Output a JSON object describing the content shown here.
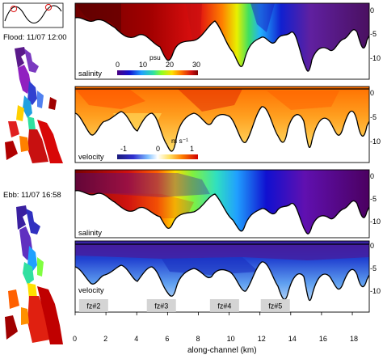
{
  "tide": {
    "flood_label": "Flood: 11/07 12:00",
    "ebb_label": "Ebb: 11/07 16:58"
  },
  "panels": [
    {
      "id": "flood-salinity",
      "label": "salinity",
      "colorbar": {
        "unit": "psu",
        "ticks": [
          "0",
          "10",
          "20",
          "30"
        ]
      }
    },
    {
      "id": "flood-velocity",
      "label": "velocity",
      "colorbar": {
        "unit": "m s⁻¹",
        "ticks": [
          "-1",
          "0",
          "1"
        ]
      }
    },
    {
      "id": "ebb-salinity",
      "label": "salinity"
    },
    {
      "id": "ebb-velocity",
      "label": "velocity"
    }
  ],
  "depth_ticks": [
    "0",
    "-5",
    "-10"
  ],
  "x_ticks": [
    "0",
    "2",
    "4",
    "6",
    "8",
    "10",
    "12",
    "14",
    "16",
    "18"
  ],
  "x_label": "along-channel (km)",
  "frontal_zones": [
    {
      "label": "fz#2",
      "km": 1.2
    },
    {
      "label": "fz#3",
      "km": 5.6
    },
    {
      "label": "fz#4",
      "km": 9.7
    },
    {
      "label": "fz#5",
      "km": 13.0
    }
  ],
  "colors": {
    "salinity_scale": [
      "#4b0082",
      "#1010d0",
      "#20a0ff",
      "#30e0a0",
      "#90ff20",
      "#ffe000",
      "#ff7000",
      "#d01010",
      "#7a0000"
    ],
    "velocity_scale": [
      "#1a1a7a",
      "#3030d0",
      "#80c0ff",
      "#ffffff",
      "#ffe060",
      "#ff8000",
      "#d00000"
    ]
  }
}
